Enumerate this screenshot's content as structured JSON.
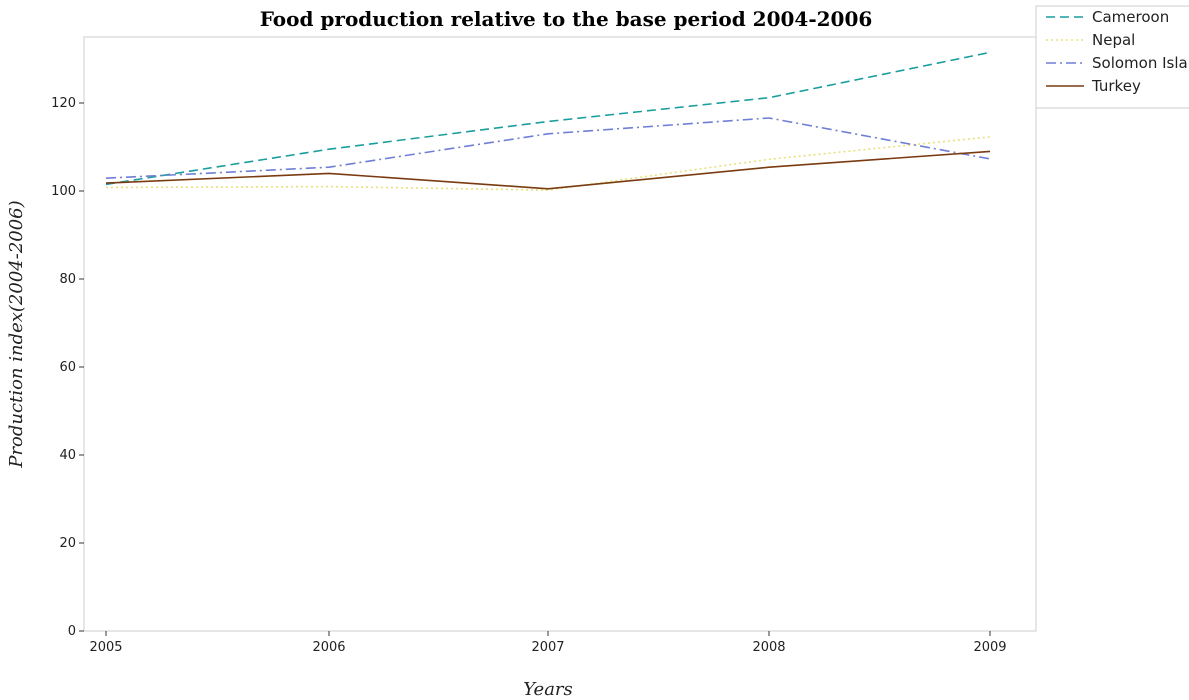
{
  "chart_data": {
    "type": "line",
    "title": "Food production relative to the base period 2004-2006",
    "xlabel": "Years",
    "ylabel": "Production index(2004-2006)",
    "categories": [
      "2005",
      "2006",
      "2007",
      "2008",
      "2009"
    ],
    "ylim": [
      0,
      135
    ],
    "yticks": [
      0,
      20,
      40,
      60,
      80,
      100,
      120
    ],
    "grid": false,
    "legend_position": "top-right",
    "series": [
      {
        "name": "Cameroon",
        "color": "#1a9e9e",
        "dash": "dashed",
        "values": [
          101.5,
          109.5,
          115.8,
          121.2,
          131.5
        ]
      },
      {
        "name": "Nepal",
        "color": "#e8e07a",
        "dash": "dotted",
        "values": [
          100.8,
          101.0,
          100.2,
          107.2,
          112.3
        ]
      },
      {
        "name": "Solomon Islands",
        "color": "#6f7fd6",
        "dash": "dashdot",
        "values": [
          102.9,
          105.4,
          113.0,
          116.6,
          107.3
        ]
      },
      {
        "name": "Turkey",
        "color": "#7a3b10",
        "dash": "solid",
        "values": [
          101.8,
          104.0,
          100.5,
          105.4,
          109.0
        ]
      }
    ]
  }
}
